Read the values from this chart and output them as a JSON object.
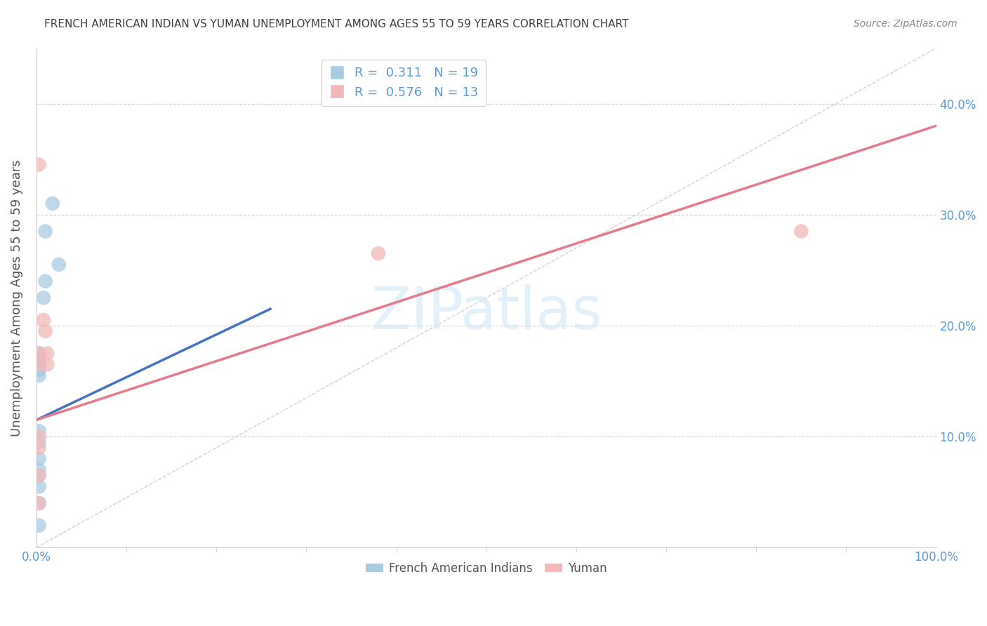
{
  "title": "FRENCH AMERICAN INDIAN VS YUMAN UNEMPLOYMENT AMONG AGES 55 TO 59 YEARS CORRELATION CHART",
  "source": "Source: ZipAtlas.com",
  "ylabel": "Unemployment Among Ages 55 to 59 years",
  "xlim": [
    0,
    1.0
  ],
  "ylim": [
    0,
    0.45
  ],
  "xticks_major": [
    0.0,
    1.0
  ],
  "xticklabels_major": [
    "0.0%",
    "100.0%"
  ],
  "xticks_minor": [
    0.1,
    0.2,
    0.3,
    0.4,
    0.5,
    0.6,
    0.7,
    0.8,
    0.9
  ],
  "yticks": [
    0.0,
    0.1,
    0.2,
    0.3,
    0.4
  ],
  "yticklabels_right": [
    "",
    "10.0%",
    "20.0%",
    "30.0%",
    "40.0%"
  ],
  "blue_scatter_x": [
    0.018,
    0.01,
    0.025,
    0.01,
    0.008,
    0.003,
    0.003,
    0.003,
    0.003,
    0.003,
    0.003,
    0.003,
    0.003,
    0.003,
    0.003,
    0.003,
    0.003,
    0.003,
    0.003
  ],
  "blue_scatter_y": [
    0.31,
    0.285,
    0.255,
    0.24,
    0.225,
    0.175,
    0.165,
    0.16,
    0.155,
    0.17,
    0.16,
    0.105,
    0.095,
    0.08,
    0.07,
    0.065,
    0.055,
    0.02,
    0.04
  ],
  "pink_scatter_x": [
    0.003,
    0.008,
    0.01,
    0.012,
    0.012,
    0.003,
    0.003,
    0.003,
    0.003,
    0.38,
    0.85,
    0.003,
    0.003
  ],
  "pink_scatter_y": [
    0.345,
    0.205,
    0.195,
    0.175,
    0.165,
    0.175,
    0.165,
    0.1,
    0.09,
    0.265,
    0.285,
    0.065,
    0.04
  ],
  "blue_line_x": [
    0.0,
    0.26
  ],
  "blue_line_y": [
    0.115,
    0.215
  ],
  "pink_line_x": [
    0.0,
    1.0
  ],
  "pink_line_y": [
    0.115,
    0.38
  ],
  "diag_line_x": [
    0.0,
    1.0
  ],
  "diag_line_y": [
    0.0,
    0.45
  ],
  "R_blue": "0.311",
  "N_blue": "19",
  "R_pink": "0.576",
  "N_pink": "13",
  "blue_color": "#a8cce4",
  "pink_color": "#f4b8b8",
  "blue_line_color": "#4472c4",
  "pink_line_color": "#e47a8c",
  "legend_label_blue": "French American Indians",
  "legend_label_pink": "Yuman",
  "title_color": "#404040",
  "axis_label_color": "#5b9bd5",
  "ylabel_color": "#555555",
  "background_color": "#ffffff",
  "grid_color": "#cccccc",
  "watermark_color": "#d0e8f5",
  "source_color": "#888888"
}
